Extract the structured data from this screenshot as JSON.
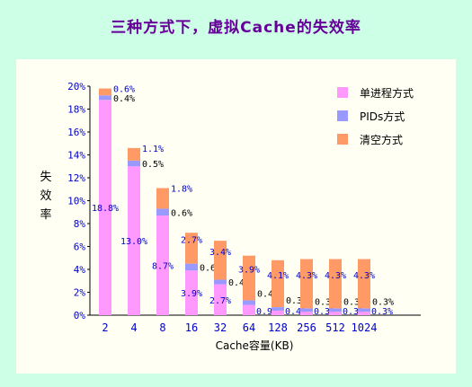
{
  "title": "三种方式下，虚拟Cache的失效率",
  "chart_data": {
    "type": "bar",
    "stacked": true,
    "categories": [
      "2",
      "4",
      "8",
      "16",
      "32",
      "64",
      "128",
      "256",
      "512",
      "1024"
    ],
    "series": [
      {
        "name": "单进程方式",
        "color": "#ff99ff",
        "values": [
          18.8,
          13.0,
          8.7,
          3.9,
          2.7,
          0.9,
          0.4,
          0.3,
          0.3,
          0.3
        ],
        "labels": [
          "18.8%",
          "13.0%",
          "8.7%",
          "3.9%",
          "2.7%",
          "0.9%",
          "0.4%",
          "0.3%",
          "0.3%",
          "0.3%"
        ]
      },
      {
        "name": "PIDs方式",
        "color": "#9999ff",
        "values": [
          0.4,
          0.5,
          0.6,
          0.6,
          0.4,
          0.4,
          0.3,
          0.3,
          0.3,
          0.3
        ],
        "labels": [
          "0.4%",
          "0.5%",
          "0.6%",
          "0.6%",
          "0.4%",
          "0.4%",
          "0.3%",
          "0.3%",
          "0.3%",
          "0.3%"
        ]
      },
      {
        "name": "清空方式",
        "color": "#ff9966",
        "values": [
          0.6,
          1.1,
          1.8,
          2.7,
          3.4,
          3.9,
          4.1,
          4.3,
          4.3,
          4.3
        ],
        "labels": [
          "0.6%",
          "1.1%",
          "1.8%",
          "2.7%",
          "3.4%",
          "3.9%",
          "4.1%",
          "4.3%",
          "4.3%",
          "4.3%"
        ]
      }
    ],
    "xlabel": "Cache容量(KB)",
    "ylabel": "失效率",
    "ylim": [
      0,
      20
    ],
    "yticks": [
      "0%",
      "2%",
      "4%",
      "6%",
      "8%",
      "10%",
      "12%",
      "14%",
      "16%",
      "18%",
      "20%"
    ],
    "legend_position": "top-right",
    "grid": false
  }
}
